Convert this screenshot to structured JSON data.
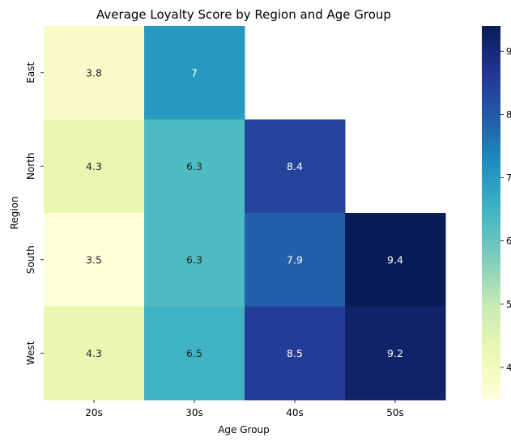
{
  "chart_data": {
    "type": "heatmap",
    "title": "Average Loyalty Score by Region and Age Group",
    "xlabel": "Age Group",
    "ylabel": "Region",
    "x_categories": [
      "20s",
      "30s",
      "40s",
      "50s"
    ],
    "y_categories": [
      "East",
      "North",
      "South",
      "West"
    ],
    "values": [
      [
        3.8,
        7,
        null,
        null
      ],
      [
        4.3,
        6.3,
        8.4,
        null
      ],
      [
        3.5,
        6.3,
        7.9,
        9.4
      ],
      [
        4.3,
        6.5,
        8.5,
        9.2
      ]
    ],
    "value_labels": [
      [
        "3.8",
        "7",
        "",
        ""
      ],
      [
        "4.3",
        "6.3",
        "8.4",
        ""
      ],
      [
        "3.5",
        "6.3",
        "7.9",
        "9.4"
      ],
      [
        "4.3",
        "6.5",
        "8.5",
        "9.2"
      ]
    ],
    "colorbar": {
      "colormap": "YlGnBu",
      "range": [
        3.5,
        9.4
      ],
      "ticks": [
        4,
        5,
        6,
        7,
        8,
        9
      ],
      "tick_labels": [
        "4",
        "5",
        "6",
        "7",
        "8",
        "9"
      ]
    },
    "annotation_colors": {
      "light_cells": "#ffffff",
      "dark_cells": "#262626"
    },
    "missing_cell_color": "#ffffff"
  }
}
